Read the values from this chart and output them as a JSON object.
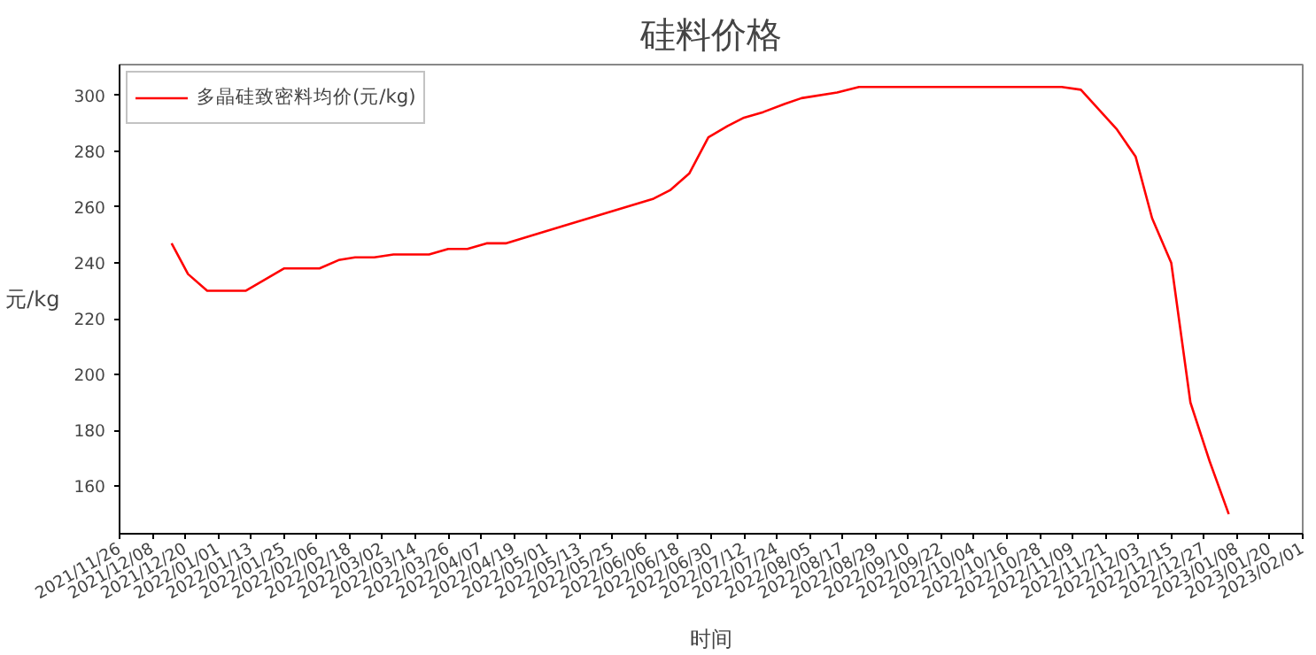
{
  "chart_data": {
    "type": "line",
    "title": "硅料价格",
    "xlabel": "时间",
    "ylabel": "元/kg",
    "legend": "top left",
    "grid": false,
    "xlim": [
      "2021-11-26",
      "2023-02-01"
    ],
    "ylim": [
      143,
      311
    ],
    "yticks": [
      160,
      180,
      200,
      220,
      240,
      260,
      280,
      300
    ],
    "xticks": [
      {
        "value": "2021-11-26",
        "label": "2021/11/26"
      },
      {
        "value": "2021-12-08",
        "label": "2021/12/08"
      },
      {
        "value": "2021-12-20",
        "label": "2021/12/20"
      },
      {
        "value": "2022-01-01",
        "label": "2022/01/01"
      },
      {
        "value": "2022-01-13",
        "label": "2022/01/13"
      },
      {
        "value": "2022-01-25",
        "label": "2022/01/25"
      },
      {
        "value": "2022-02-06",
        "label": "2022/02/06"
      },
      {
        "value": "2022-02-18",
        "label": "2022/02/18"
      },
      {
        "value": "2022-03-02",
        "label": "2022/03/02"
      },
      {
        "value": "2022-03-14",
        "label": "2022/03/14"
      },
      {
        "value": "2022-03-26",
        "label": "2022/03/26"
      },
      {
        "value": "2022-04-07",
        "label": "2022/04/07"
      },
      {
        "value": "2022-04-19",
        "label": "2022/04/19"
      },
      {
        "value": "2022-05-01",
        "label": "2022/05/01"
      },
      {
        "value": "2022-05-13",
        "label": "2022/05/13"
      },
      {
        "value": "2022-05-25",
        "label": "2022/05/25"
      },
      {
        "value": "2022-06-06",
        "label": "2022/06/06"
      },
      {
        "value": "2022-06-18",
        "label": "2022/06/18"
      },
      {
        "value": "2022-06-30",
        "label": "2022/06/30"
      },
      {
        "value": "2022-07-12",
        "label": "2022/07/12"
      },
      {
        "value": "2022-07-24",
        "label": "2022/07/24"
      },
      {
        "value": "2022-08-05",
        "label": "2022/08/05"
      },
      {
        "value": "2022-08-17",
        "label": "2022/08/17"
      },
      {
        "value": "2022-08-29",
        "label": "2022/08/29"
      },
      {
        "value": "2022-09-10",
        "label": "2022/09/10"
      },
      {
        "value": "2022-09-22",
        "label": "2022/09/22"
      },
      {
        "value": "2022-10-04",
        "label": "2022/10/04"
      },
      {
        "value": "2022-10-16",
        "label": "2022/10/16"
      },
      {
        "value": "2022-10-28",
        "label": "2022/10/28"
      },
      {
        "value": "2022-11-09",
        "label": "2022/11/09"
      },
      {
        "value": "2022-11-21",
        "label": "2022/11/21"
      },
      {
        "value": "2022-12-03",
        "label": "2022/12/03"
      },
      {
        "value": "2022-12-15",
        "label": "2022/12/15"
      },
      {
        "value": "2022-12-27",
        "label": "2022/12/27"
      },
      {
        "value": "2023-01-08",
        "label": "2023/01/08"
      },
      {
        "value": "2023-01-20",
        "label": "2023/01/20"
      },
      {
        "value": "2023-02-01",
        "label": "2023/02/01"
      }
    ],
    "x": [
      "2021-12-15",
      "2021-12-21",
      "2021-12-28",
      "2022-01-11",
      "2022-01-25",
      "2022-02-07",
      "2022-02-14",
      "2022-02-20",
      "2022-02-27",
      "2022-03-06",
      "2022-03-19",
      "2022-03-26",
      "2022-04-02",
      "2022-04-09",
      "2022-04-16",
      "2022-06-09",
      "2022-06-15",
      "2022-06-22",
      "2022-06-29",
      "2022-07-06",
      "2022-07-12",
      "2022-07-19",
      "2022-07-27",
      "2022-08-02",
      "2022-08-15",
      "2022-08-23",
      "2022-11-05",
      "2022-11-12",
      "2022-11-25",
      "2022-12-02",
      "2022-12-08",
      "2022-12-15",
      "2022-12-22",
      "2022-12-29",
      "2023-01-05"
    ],
    "series": [
      {
        "name": "多晶硅致密料均价(元/kg)",
        "color": "#ff0000",
        "values": [
          247,
          236,
          230,
          230,
          238,
          238,
          241,
          242,
          242,
          243,
          243,
          245,
          245,
          247,
          247,
          263,
          266,
          272,
          285,
          289,
          292,
          294,
          297,
          299,
          301,
          303,
          303,
          302,
          288,
          278,
          256,
          240,
          190,
          169,
          150
        ]
      }
    ]
  }
}
